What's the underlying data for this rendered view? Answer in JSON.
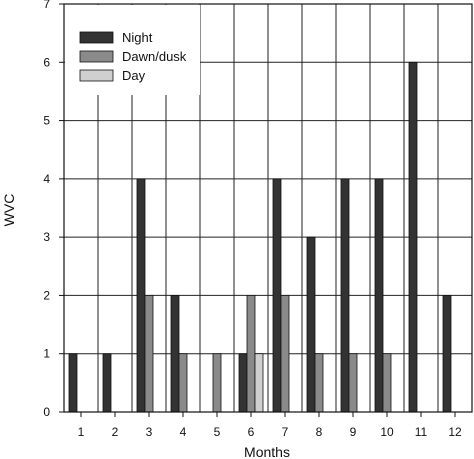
{
  "chart_data": {
    "type": "bar",
    "title": "",
    "xlabel": "Months",
    "ylabel": "WVC",
    "ylim": [
      0,
      7
    ],
    "yticks": [
      0,
      1,
      2,
      3,
      4,
      5,
      6,
      7
    ],
    "categories": [
      "1",
      "2",
      "3",
      "4",
      "5",
      "6",
      "7",
      "8",
      "9",
      "10",
      "11",
      "12"
    ],
    "grid": "vertical and horizontal",
    "legend_position": "top-left",
    "series": [
      {
        "name": "Night",
        "color": "#333333",
        "values": [
          1,
          1,
          4,
          2,
          0,
          1,
          4,
          3,
          4,
          4,
          6,
          2
        ]
      },
      {
        "name": "Dawn/dusk",
        "color": "#8a8a8a",
        "values": [
          0,
          0,
          2,
          1,
          1,
          2,
          2,
          1,
          1,
          1,
          0,
          0
        ]
      },
      {
        "name": "Day",
        "color": "#cfcfcf",
        "values": [
          0,
          0,
          0,
          0,
          0,
          1,
          0,
          0,
          0,
          0,
          0,
          0
        ]
      }
    ]
  }
}
